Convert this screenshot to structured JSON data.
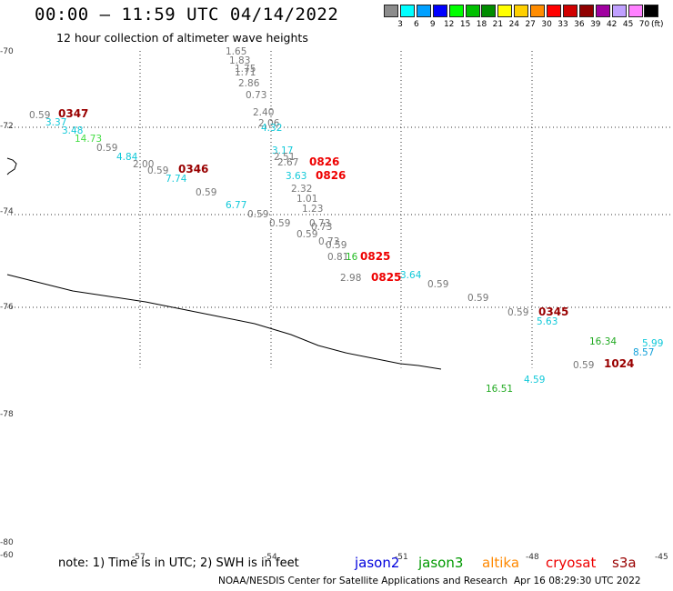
{
  "header": {
    "title": "00:00 — 11:59 UTC 04/14/2022",
    "subtitle": "12 hour collection of altimeter wave heights"
  },
  "legend": {
    "unit": "(ft)",
    "bins": [
      {
        "label": "3",
        "color": "#8c8c8c"
      },
      {
        "label": "6",
        "color": "#00ffff"
      },
      {
        "label": "9",
        "color": "#00a0ff"
      },
      {
        "label": "12",
        "color": "#0000ff"
      },
      {
        "label": "15",
        "color": "#00ff00"
      },
      {
        "label": "18",
        "color": "#00c000"
      },
      {
        "label": "21",
        "color": "#008c00"
      },
      {
        "label": "24",
        "color": "#ffff00"
      },
      {
        "label": "27",
        "color": "#ffd000"
      },
      {
        "label": "30",
        "color": "#ff8c00"
      },
      {
        "label": "33",
        "color": "#ff0000"
      },
      {
        "label": "36",
        "color": "#d00000"
      },
      {
        "label": "39",
        "color": "#900000"
      },
      {
        "label": "42",
        "color": "#a000a0"
      },
      {
        "label": "45",
        "color": "#c0a0ff"
      },
      {
        "label": "70",
        "color": "#ff80ff"
      },
      {
        "label": "",
        "color": "#000000"
      }
    ]
  },
  "axes": {
    "latitudes": [
      "-70",
      "-72",
      "-74",
      "-76",
      "-78",
      "-80"
    ],
    "longitudes": [
      "-60",
      "-57",
      "-54",
      "-51",
      "-48",
      "-45"
    ]
  },
  "wave_heights": [
    {
      "text": "1.65",
      "color": "#777777"
    },
    {
      "text": "1.83",
      "color": "#777777"
    },
    {
      "text": "1.75",
      "color": "#777777"
    },
    {
      "text": "1.71",
      "color": "#777777"
    },
    {
      "text": "2.86",
      "color": "#777777"
    },
    {
      "text": "0.73",
      "color": "#777777"
    },
    {
      "text": "2.40",
      "color": "#777777"
    },
    {
      "text": "2.06",
      "color": "#777777"
    },
    {
      "text": "4.32",
      "color": "#11c9d9"
    },
    {
      "text": "3.17",
      "color": "#11c9d9"
    },
    {
      "text": "2.51",
      "color": "#777777"
    },
    {
      "text": "2.67",
      "color": "#777777"
    },
    {
      "text": "3.63",
      "color": "#11c9d9"
    },
    {
      "text": "2.32",
      "color": "#777777"
    },
    {
      "text": "1.01",
      "color": "#777777"
    },
    {
      "text": "1.23",
      "color": "#777777"
    },
    {
      "text": "0.59",
      "color": "#777777"
    },
    {
      "text": "3.37",
      "color": "#11c9d9"
    },
    {
      "text": "3.48",
      "color": "#11c9d9"
    },
    {
      "text": "14.73",
      "color": "#44dd44"
    },
    {
      "text": "0.59",
      "color": "#777777"
    },
    {
      "text": "4.84",
      "color": "#11c9d9"
    },
    {
      "text": "2.00",
      "color": "#777777"
    },
    {
      "text": "0.59",
      "color": "#777777"
    },
    {
      "text": "7.74",
      "color": "#11c9d9"
    },
    {
      "text": "0.59",
      "color": "#777777"
    },
    {
      "text": "6.77",
      "color": "#11c9d9"
    },
    {
      "text": "0.59",
      "color": "#777777"
    },
    {
      "text": "0.59",
      "color": "#777777"
    },
    {
      "text": "0.73",
      "color": "#777777"
    },
    {
      "text": "0.73",
      "color": "#777777"
    },
    {
      "text": "0.59",
      "color": "#777777"
    },
    {
      "text": "0.73",
      "color": "#777777"
    },
    {
      "text": "0.59",
      "color": "#777777"
    },
    {
      "text": "0.81",
      "color": "#777777"
    },
    {
      "text": "16",
      "color": "#22bb22"
    },
    {
      "text": "2.98",
      "color": "#777777"
    },
    {
      "text": "3.64",
      "color": "#11c9d9"
    },
    {
      "text": "0.59",
      "color": "#777777"
    },
    {
      "text": "0.59",
      "color": "#777777"
    },
    {
      "text": "0.59",
      "color": "#777777"
    },
    {
      "text": "5.63",
      "color": "#11c9d9"
    },
    {
      "text": "16.34",
      "color": "#22aa22"
    },
    {
      "text": "5.99",
      "color": "#11c9d9"
    },
    {
      "text": "8.57",
      "color": "#11a0d9"
    },
    {
      "text": "0.59",
      "color": "#777777"
    },
    {
      "text": "4.59",
      "color": "#11c9d9"
    },
    {
      "text": "16.51",
      "color": "#22aa22"
    }
  ],
  "pass_times": [
    {
      "text": "0347",
      "color": "#990000"
    },
    {
      "text": "0346",
      "color": "#990000"
    },
    {
      "text": "0826",
      "color": "#ee0000"
    },
    {
      "text": "0826",
      "color": "#ee0000"
    },
    {
      "text": "0825",
      "color": "#ee0000"
    },
    {
      "text": "0825",
      "color": "#ee0000"
    },
    {
      "text": "0345",
      "color": "#990000"
    },
    {
      "text": "1024",
      "color": "#990000"
    }
  ],
  "footer": {
    "note": "note: 1) Time is in UTC; 2) SWH is in feet",
    "satellites": [
      {
        "name": "jason2",
        "color": "#0000dd"
      },
      {
        "name": "jason3",
        "color": "#009900"
      },
      {
        "name": "altika",
        "color": "#ff8800"
      },
      {
        "name": "cryosat",
        "color": "#ee0000"
      },
      {
        "name": "s3a",
        "color": "#990000"
      }
    ],
    "credit": "NOAA/NESDIS Center for Satellite Applications and Research",
    "timestamp": "Apr 16 08:29:30 UTC 2022"
  }
}
